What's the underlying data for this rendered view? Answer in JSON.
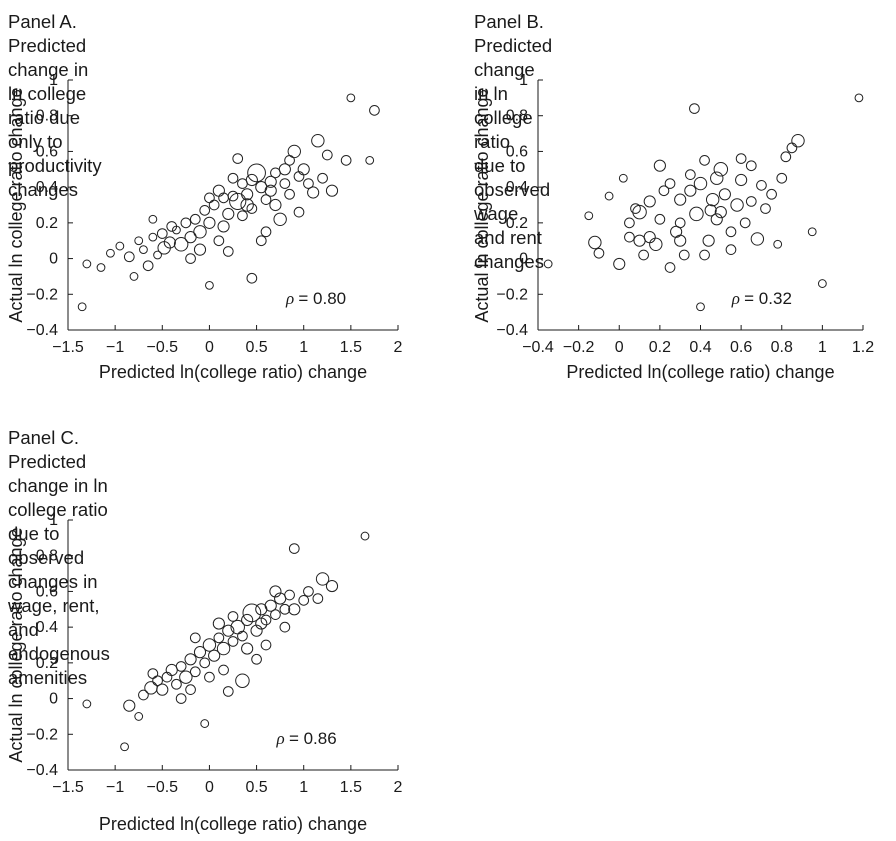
{
  "chart_data": [
    {
      "id": "A",
      "type": "scatter",
      "title": "Panel A. Predicted change in ln college ratio due only to productivity changes",
      "title_lines": [
        "Panel A. Predicted change in ln college",
        "ratio due only to productivity changes"
      ],
      "xlabel": "Predicted ln(college ratio) change",
      "ylabel": "Actual ln college ratio change",
      "xlim": [
        -1.5,
        2
      ],
      "ylim": [
        -0.4,
        1
      ],
      "xticks": [
        -1.5,
        -1,
        -0.5,
        0,
        0.5,
        1,
        1.5,
        2
      ],
      "xtick_labels": [
        "−1.5",
        "−1",
        "−0.5",
        "0",
        "0.5",
        "1",
        "1.5",
        "2"
      ],
      "yticks": [
        -0.4,
        -0.2,
        0,
        0.2,
        0.4,
        0.6,
        0.8,
        1
      ],
      "ytick_labels": [
        "−0.4",
        "−0.2",
        "0",
        "0.2",
        "0.4",
        "0.6",
        "0.8",
        "1"
      ],
      "annotation": {
        "rho_symbol": "ρ",
        "rho_text": "= 0.80",
        "x": 1.45,
        "y": -0.22
      },
      "marker": "open-circle, size proportional to weight",
      "points": [
        [
          -1.35,
          -0.27,
          1
        ],
        [
          -1.3,
          -0.03,
          1
        ],
        [
          -1.15,
          -0.05,
          1
        ],
        [
          -1.05,
          0.03,
          1
        ],
        [
          -0.95,
          0.07,
          1
        ],
        [
          -0.85,
          0.01,
          2
        ],
        [
          -0.8,
          -0.1,
          1
        ],
        [
          -0.75,
          0.1,
          1
        ],
        [
          -0.7,
          0.05,
          1
        ],
        [
          -0.65,
          -0.04,
          2
        ],
        [
          -0.6,
          0.12,
          1
        ],
        [
          -0.55,
          0.02,
          1
        ],
        [
          -0.5,
          0.14,
          2
        ],
        [
          -0.48,
          0.06,
          4
        ],
        [
          -0.42,
          0.09,
          3
        ],
        [
          -0.35,
          0.16,
          1
        ],
        [
          -0.3,
          0.08,
          5
        ],
        [
          -0.25,
          0.2,
          2
        ],
        [
          -0.2,
          0.12,
          3
        ],
        [
          -0.15,
          0.22,
          2
        ],
        [
          -0.1,
          0.15,
          4
        ],
        [
          -0.05,
          0.27,
          2
        ],
        [
          0.0,
          0.2,
          3
        ],
        [
          0.05,
          0.3,
          2
        ],
        [
          0.1,
          0.1,
          2
        ],
        [
          0.15,
          0.34,
          2
        ],
        [
          0.2,
          0.25,
          3
        ],
        [
          0.25,
          0.35,
          2
        ],
        [
          0.3,
          0.32,
          8
        ],
        [
          0.35,
          0.42,
          2
        ],
        [
          0.4,
          0.3,
          4
        ],
        [
          0.45,
          0.28,
          2
        ],
        [
          0.5,
          0.48,
          10
        ],
        [
          0.55,
          0.4,
          3
        ],
        [
          0.6,
          0.33,
          2
        ],
        [
          0.65,
          0.43,
          3
        ],
        [
          0.7,
          0.48,
          2
        ],
        [
          0.75,
          0.22,
          4
        ],
        [
          0.8,
          0.5,
          3
        ],
        [
          0.85,
          0.36,
          2
        ],
        [
          0.9,
          0.6,
          4
        ],
        [
          0.95,
          0.46,
          2
        ],
        [
          1.0,
          0.5,
          3
        ],
        [
          1.05,
          0.42,
          2
        ],
        [
          1.1,
          0.37,
          3
        ],
        [
          1.15,
          0.66,
          4
        ],
        [
          1.2,
          0.45,
          2
        ],
        [
          1.25,
          0.58,
          2
        ],
        [
          1.3,
          0.38,
          3
        ],
        [
          1.45,
          0.55,
          2
        ],
        [
          1.5,
          0.9,
          1
        ],
        [
          1.7,
          0.55,
          1
        ],
        [
          1.75,
          0.83,
          2
        ],
        [
          0.45,
          -0.11,
          2
        ],
        [
          0.0,
          -0.15,
          1
        ],
        [
          0.2,
          0.04,
          2
        ],
        [
          0.6,
          0.15,
          2
        ],
        [
          -0.2,
          0.0,
          2
        ],
        [
          0.3,
          0.56,
          2
        ],
        [
          -0.6,
          0.22,
          1
        ],
        [
          0.1,
          0.38,
          3
        ],
        [
          0.4,
          0.36,
          3
        ],
        [
          0.55,
          0.1,
          2
        ],
        [
          0.7,
          0.3,
          3
        ],
        [
          0.85,
          0.55,
          2
        ],
        [
          0.95,
          0.26,
          2
        ],
        [
          -0.4,
          0.18,
          2
        ],
        [
          0.0,
          0.34,
          2
        ],
        [
          0.15,
          0.18,
          3
        ],
        [
          0.35,
          0.24,
          2
        ],
        [
          0.65,
          0.38,
          3
        ],
        [
          0.25,
          0.45,
          2
        ],
        [
          -0.1,
          0.05,
          3
        ],
        [
          0.45,
          0.44,
          3
        ],
        [
          0.8,
          0.42,
          2
        ]
      ]
    },
    {
      "id": "B",
      "type": "scatter",
      "title": "Panel B. Predicted change in ln college ratio due to observed wage and rent changes",
      "title_lines": [
        "Panel B. Predicted change in ln college ratio",
        "due to observed wage and rent changes"
      ],
      "xlabel": "Predicted ln(college ratio) change",
      "ylabel": "Actual ln college ratio change",
      "xlim": [
        -0.4,
        1.2
      ],
      "ylim": [
        -0.4,
        1
      ],
      "xticks": [
        -0.4,
        -0.2,
        0,
        0.2,
        0.4,
        0.6,
        0.8,
        1,
        1.2
      ],
      "xtick_labels": [
        "−0.4",
        "−0.2",
        "0",
        "0.2",
        "0.4",
        "0.6",
        "0.8",
        "1",
        "1.2"
      ],
      "yticks": [
        -0.4,
        -0.2,
        0,
        0.2,
        0.4,
        0.6,
        0.8,
        1
      ],
      "ytick_labels": [
        "−0.4",
        "−0.2",
        "0",
        "0.2",
        "0.4",
        "0.6",
        "0.8",
        "1"
      ],
      "annotation": {
        "rho_symbol": "ρ",
        "rho_text": "= 0.32",
        "x": 0.85,
        "y": -0.22
      },
      "marker": "open-circle, size proportional to weight",
      "points": [
        [
          -0.35,
          -0.03,
          1
        ],
        [
          -0.15,
          0.24,
          1
        ],
        [
          -0.1,
          0.03,
          2
        ],
        [
          -0.12,
          0.09,
          4
        ],
        [
          -0.05,
          0.35,
          1
        ],
        [
          0.0,
          -0.03,
          3
        ],
        [
          0.02,
          0.45,
          1
        ],
        [
          0.05,
          0.2,
          2
        ],
        [
          0.08,
          0.28,
          2
        ],
        [
          0.1,
          0.1,
          3
        ],
        [
          0.12,
          0.02,
          2
        ],
        [
          0.15,
          0.32,
          3
        ],
        [
          0.18,
          0.08,
          4
        ],
        [
          0.2,
          0.22,
          2
        ],
        [
          0.22,
          0.38,
          2
        ],
        [
          0.25,
          -0.05,
          2
        ],
        [
          0.28,
          0.15,
          3
        ],
        [
          0.3,
          0.33,
          3
        ],
        [
          0.32,
          0.02,
          2
        ],
        [
          0.35,
          0.47,
          2
        ],
        [
          0.38,
          0.25,
          5
        ],
        [
          0.4,
          0.42,
          4
        ],
        [
          0.42,
          0.55,
          2
        ],
        [
          0.44,
          0.1,
          3
        ],
        [
          0.46,
          0.33,
          4
        ],
        [
          0.48,
          0.22,
          3
        ],
        [
          0.5,
          0.5,
          5
        ],
        [
          0.52,
          0.36,
          3
        ],
        [
          0.55,
          0.15,
          2
        ],
        [
          0.58,
          0.3,
          4
        ],
        [
          0.6,
          0.44,
          3
        ],
        [
          0.62,
          0.2,
          2
        ],
        [
          0.65,
          0.32,
          2
        ],
        [
          0.68,
          0.11,
          4
        ],
        [
          0.7,
          0.41,
          2
        ],
        [
          0.75,
          0.36,
          2
        ],
        [
          0.78,
          0.08,
          1
        ],
        [
          0.8,
          0.45,
          2
        ],
        [
          0.82,
          0.57,
          2
        ],
        [
          0.85,
          0.62,
          2
        ],
        [
          0.88,
          0.66,
          4
        ],
        [
          0.95,
          0.15,
          1
        ],
        [
          1.0,
          -0.14,
          1
        ],
        [
          1.18,
          0.9,
          1
        ],
        [
          0.37,
          0.84,
          2
        ],
        [
          0.4,
          -0.27,
          1
        ],
        [
          0.2,
          0.52,
          3
        ],
        [
          0.3,
          0.1,
          3
        ],
        [
          0.45,
          0.27,
          3
        ],
        [
          0.55,
          0.05,
          2
        ],
        [
          0.6,
          0.56,
          2
        ],
        [
          0.25,
          0.42,
          2
        ],
        [
          0.15,
          0.12,
          3
        ],
        [
          0.35,
          0.38,
          3
        ],
        [
          0.5,
          0.26,
          3
        ],
        [
          0.1,
          0.26,
          5
        ],
        [
          0.42,
          0.02,
          2
        ],
        [
          0.65,
          0.52,
          2
        ],
        [
          0.3,
          0.2,
          2
        ],
        [
          0.05,
          0.12,
          2
        ],
        [
          0.72,
          0.28,
          2
        ],
        [
          0.48,
          0.45,
          4
        ]
      ]
    },
    {
      "id": "C",
      "type": "scatter",
      "title": "Panel C. Predicted change in ln college ratio due to observed changes in wage, rent, and endogenous amenities",
      "title_lines": [
        "Panel C. Predicted change in ln college ratio",
        "due to observed changes in wage, rent, and",
        "endogenous amenities"
      ],
      "xlabel": "Predicted ln(college ratio) change",
      "ylabel": "Actual ln college ratio change",
      "xlim": [
        -1.5,
        2
      ],
      "ylim": [
        -0.4,
        1
      ],
      "xticks": [
        -1.5,
        -1,
        -0.5,
        0,
        0.5,
        1,
        1.5,
        2
      ],
      "xtick_labels": [
        "−1.5",
        "−1",
        "−0.5",
        "0",
        "0.5",
        "1",
        "1.5",
        "2"
      ],
      "yticks": [
        -0.4,
        -0.2,
        0,
        0.2,
        0.4,
        0.6,
        0.8,
        1
      ],
      "ytick_labels": [
        "−0.4",
        "−0.2",
        "0",
        "0.2",
        "0.4",
        "0.6",
        "0.8",
        "1"
      ],
      "annotation": {
        "rho_symbol": "ρ",
        "rho_text": "= 0.86",
        "x": 1.35,
        "y": -0.22
      },
      "marker": "open-circle, size proportional to weight",
      "points": [
        [
          -1.3,
          -0.03,
          1
        ],
        [
          -0.9,
          -0.27,
          1
        ],
        [
          -0.85,
          -0.04,
          3
        ],
        [
          -0.75,
          -0.1,
          1
        ],
        [
          -0.7,
          0.02,
          2
        ],
        [
          -0.62,
          0.06,
          4
        ],
        [
          -0.55,
          0.1,
          2
        ],
        [
          -0.5,
          0.05,
          3
        ],
        [
          -0.45,
          0.12,
          2
        ],
        [
          -0.4,
          0.16,
          3
        ],
        [
          -0.35,
          0.08,
          2
        ],
        [
          -0.3,
          0.18,
          2
        ],
        [
          -0.25,
          0.12,
          4
        ],
        [
          -0.2,
          0.22,
          3
        ],
        [
          -0.15,
          0.15,
          2
        ],
        [
          -0.1,
          0.26,
          3
        ],
        [
          -0.05,
          0.2,
          2
        ],
        [
          0.0,
          0.3,
          4
        ],
        [
          0.05,
          0.24,
          3
        ],
        [
          0.1,
          0.34,
          2
        ],
        [
          0.15,
          0.28,
          4
        ],
        [
          0.2,
          0.38,
          3
        ],
        [
          0.25,
          0.32,
          2
        ],
        [
          0.3,
          0.4,
          5
        ],
        [
          0.35,
          0.35,
          2
        ],
        [
          0.4,
          0.44,
          3
        ],
        [
          0.45,
          0.48,
          10
        ],
        [
          0.5,
          0.38,
          3
        ],
        [
          0.55,
          0.5,
          3
        ],
        [
          0.6,
          0.44,
          2
        ],
        [
          0.65,
          0.52,
          3
        ],
        [
          0.7,
          0.47,
          2
        ],
        [
          0.75,
          0.56,
          3
        ],
        [
          0.8,
          0.5,
          2
        ],
        [
          0.85,
          0.58,
          2
        ],
        [
          0.9,
          0.5,
          3
        ],
        [
          1.0,
          0.55,
          2
        ],
        [
          1.05,
          0.6,
          2
        ],
        [
          1.15,
          0.56,
          2
        ],
        [
          1.2,
          0.67,
          4
        ],
        [
          1.3,
          0.63,
          3
        ],
        [
          0.9,
          0.84,
          2
        ],
        [
          1.65,
          0.91,
          1
        ],
        [
          -0.05,
          -0.14,
          1
        ],
        [
          0.35,
          0.1,
          5
        ],
        [
          0.15,
          0.16,
          2
        ],
        [
          0.5,
          0.22,
          2
        ],
        [
          -0.6,
          0.14,
          2
        ],
        [
          -0.3,
          0.0,
          2
        ],
        [
          0.0,
          0.12,
          2
        ],
        [
          0.2,
          0.04,
          2
        ],
        [
          0.6,
          0.3,
          2
        ],
        [
          0.7,
          0.6,
          3
        ],
        [
          0.25,
          0.46,
          2
        ],
        [
          -0.15,
          0.34,
          2
        ],
        [
          0.4,
          0.28,
          3
        ],
        [
          0.55,
          0.42,
          3
        ],
        [
          0.8,
          0.4,
          2
        ],
        [
          -0.2,
          0.05,
          2
        ],
        [
          0.1,
          0.42,
          3
        ]
      ]
    }
  ]
}
